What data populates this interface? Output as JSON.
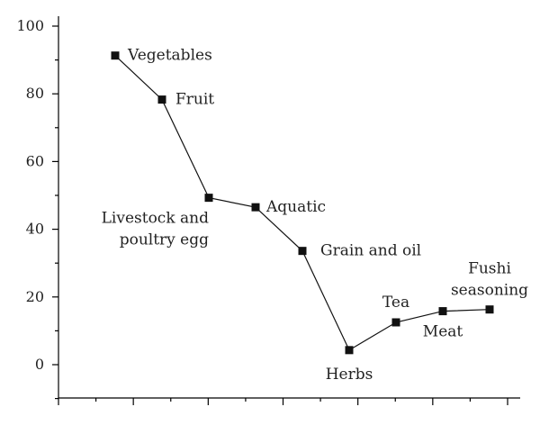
{
  "chart_data": {
    "type": "line",
    "title": "",
    "xlabel": "",
    "ylabel": "",
    "ylim": [
      -10,
      100
    ],
    "y_ticks": [
      0,
      20,
      40,
      60,
      80,
      100
    ],
    "grid": false,
    "x_tick_count": 13,
    "series": [
      {
        "name": "",
        "points": [
          {
            "x": 1,
            "y": 91.3,
            "label": [
              "Vegetables"
            ]
          },
          {
            "x": 2,
            "y": 78.3,
            "label": [
              "Fruit"
            ]
          },
          {
            "x": 3,
            "y": 49.3,
            "label": [
              "Livestock and",
              "poultry egg"
            ]
          },
          {
            "x": 4,
            "y": 46.5,
            "label": [
              "Aquatic"
            ]
          },
          {
            "x": 5,
            "y": 33.6,
            "label": [
              "Grain and oil"
            ]
          },
          {
            "x": 6,
            "y": 4.3,
            "label": [
              "Herbs"
            ]
          },
          {
            "x": 7,
            "y": 12.5,
            "label": [
              "Tea"
            ]
          },
          {
            "x": 8,
            "y": 15.8,
            "label": [
              "Meat"
            ]
          },
          {
            "x": 9,
            "y": 16.3,
            "label": [
              "Fushi",
              "seasoning"
            ]
          }
        ]
      }
    ]
  }
}
